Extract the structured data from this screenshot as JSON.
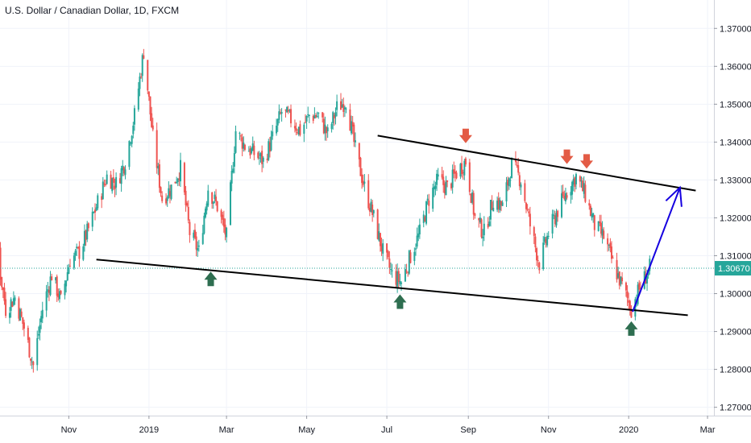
{
  "legend": {
    "title": "U.S. Dollar / Canadian Dollar, 1D, FXCM"
  },
  "chart_data": {
    "type": "candlestick",
    "title": "U.S. Dollar / Canadian Dollar, 1D, FXCM",
    "x_axis": {
      "ticks": [
        {
          "label": "Sep",
          "date": "2018-09-01"
        },
        {
          "label": "Nov",
          "date": "2018-11-01"
        },
        {
          "label": "2019",
          "date": "2019-01-01"
        },
        {
          "label": "Mar",
          "date": "2019-03-01"
        },
        {
          "label": "May",
          "date": "2019-05-01"
        },
        {
          "label": "Jul",
          "date": "2019-07-01"
        },
        {
          "label": "Sep",
          "date": "2019-09-01"
        },
        {
          "label": "Nov",
          "date": "2019-11-01"
        },
        {
          "label": "2020",
          "date": "2020-01-01"
        },
        {
          "label": "Mar",
          "date": "2020-03-01"
        }
      ],
      "range": [
        "2018-08-10",
        "2020-03-31"
      ]
    },
    "y_axis": {
      "ticks": [
        "1.27000",
        "1.28000",
        "1.29000",
        "1.30000",
        "1.31000",
        "1.32000",
        "1.33000",
        "1.34000",
        "1.35000",
        "1.36000",
        "1.37000"
      ],
      "range": [
        1.2678,
        1.3775
      ],
      "position": "right"
    },
    "last_price": {
      "value": 1.3067,
      "label": "1.30670"
    },
    "colors": {
      "up": "#26a69a",
      "down": "#ef5350",
      "last_price": "#26a69a"
    },
    "close_anchors": [
      [
        "2018-08-10",
        1.309
      ],
      [
        "2018-08-17",
        1.307
      ],
      [
        "2018-08-24",
        1.303
      ],
      [
        "2018-08-31",
        1.318
      ],
      [
        "2018-09-07",
        1.312
      ],
      [
        "2018-09-14",
        1.296
      ],
      [
        "2018-09-21",
        1.299
      ],
      [
        "2018-09-28",
        1.291
      ],
      [
        "2018-10-05",
        1.281
      ],
      [
        "2018-10-12",
        1.296
      ],
      [
        "2018-10-19",
        1.305
      ],
      [
        "2018-10-26",
        1.298
      ],
      [
        "2018-11-02",
        1.309
      ],
      [
        "2018-11-09",
        1.311
      ],
      [
        "2018-11-16",
        1.317
      ],
      [
        "2018-11-23",
        1.324
      ],
      [
        "2018-11-30",
        1.331
      ],
      [
        "2018-12-07",
        1.329
      ],
      [
        "2018-12-14",
        1.335
      ],
      [
        "2018-12-21",
        1.347
      ],
      [
        "2018-12-28",
        1.364
      ],
      [
        "2019-01-04",
        1.341
      ],
      [
        "2019-01-11",
        1.325
      ],
      [
        "2019-01-18",
        1.328
      ],
      [
        "2019-01-25",
        1.333
      ],
      [
        "2019-02-01",
        1.316
      ],
      [
        "2019-02-08",
        1.311
      ],
      [
        "2019-02-15",
        1.328
      ],
      [
        "2019-02-22",
        1.323
      ],
      [
        "2019-03-01",
        1.315
      ],
      [
        "2019-03-08",
        1.343
      ],
      [
        "2019-03-15",
        1.339
      ],
      [
        "2019-03-22",
        1.337
      ],
      [
        "2019-03-29",
        1.335
      ],
      [
        "2019-04-05",
        1.341
      ],
      [
        "2019-04-12",
        1.348
      ],
      [
        "2019-04-19",
        1.346
      ],
      [
        "2019-04-26",
        1.343
      ],
      [
        "2019-05-03",
        1.347
      ],
      [
        "2019-05-10",
        1.347
      ],
      [
        "2019-05-17",
        1.342
      ],
      [
        "2019-05-24",
        1.349
      ],
      [
        "2019-05-31",
        1.351
      ],
      [
        "2019-06-07",
        1.338
      ],
      [
        "2019-06-14",
        1.328
      ],
      [
        "2019-06-21",
        1.32
      ],
      [
        "2019-06-28",
        1.311
      ],
      [
        "2019-07-05",
        1.305
      ],
      [
        "2019-07-12",
        1.303
      ],
      [
        "2019-07-19",
        1.31
      ],
      [
        "2019-07-26",
        1.316
      ],
      [
        "2019-08-02",
        1.325
      ],
      [
        "2019-08-09",
        1.33
      ],
      [
        "2019-08-16",
        1.328
      ],
      [
        "2019-08-23",
        1.332
      ],
      [
        "2019-08-30",
        1.335
      ],
      [
        "2019-09-06",
        1.32
      ],
      [
        "2019-09-13",
        1.316
      ],
      [
        "2019-09-20",
        1.325
      ],
      [
        "2019-09-27",
        1.323
      ],
      [
        "2019-10-04",
        1.334
      ],
      [
        "2019-10-11",
        1.33
      ],
      [
        "2019-10-18",
        1.318
      ],
      [
        "2019-10-25",
        1.308
      ],
      [
        "2019-11-01",
        1.316
      ],
      [
        "2019-11-08",
        1.322
      ],
      [
        "2019-11-15",
        1.327
      ],
      [
        "2019-11-22",
        1.331
      ],
      [
        "2019-11-29",
        1.326
      ],
      [
        "2019-12-06",
        1.318
      ],
      [
        "2019-12-13",
        1.315
      ],
      [
        "2019-12-20",
        1.308
      ],
      [
        "2019-12-27",
        1.302
      ],
      [
        "2020-01-03",
        1.296
      ],
      [
        "2020-01-10",
        1.302
      ],
      [
        "2020-01-17",
        1.3067
      ]
    ],
    "annotations": {
      "trendlines": [
        {
          "name": "upper-channel-line",
          "from": [
            "2019-06-24",
            1.3417
          ],
          "to": [
            "2020-02-21",
            1.3272
          ],
          "color": "#000000"
        },
        {
          "name": "lower-channel-line",
          "from": [
            "2018-11-22",
            1.309
          ],
          "to": [
            "2020-02-15",
            1.2943
          ],
          "color": "#000000"
        }
      ],
      "projection": {
        "from": [
          "2020-01-04",
          1.2952
        ],
        "to": [
          "2020-02-09",
          1.328
        ],
        "color": "#1500e0"
      },
      "down_arrows": [
        {
          "date": "2019-08-30",
          "price": 1.3397
        },
        {
          "date": "2019-11-15",
          "price": 1.3342
        },
        {
          "date": "2019-11-30",
          "price": 1.333
        }
      ],
      "up_arrows": [
        {
          "date": "2019-02-17",
          "price": 1.3058
        },
        {
          "date": "2019-07-11",
          "price": 1.2998
        },
        {
          "date": "2020-01-03",
          "price": 1.2927
        }
      ],
      "arrow_colors": {
        "up": "#2e6e50",
        "down": "#e35b45"
      }
    }
  }
}
